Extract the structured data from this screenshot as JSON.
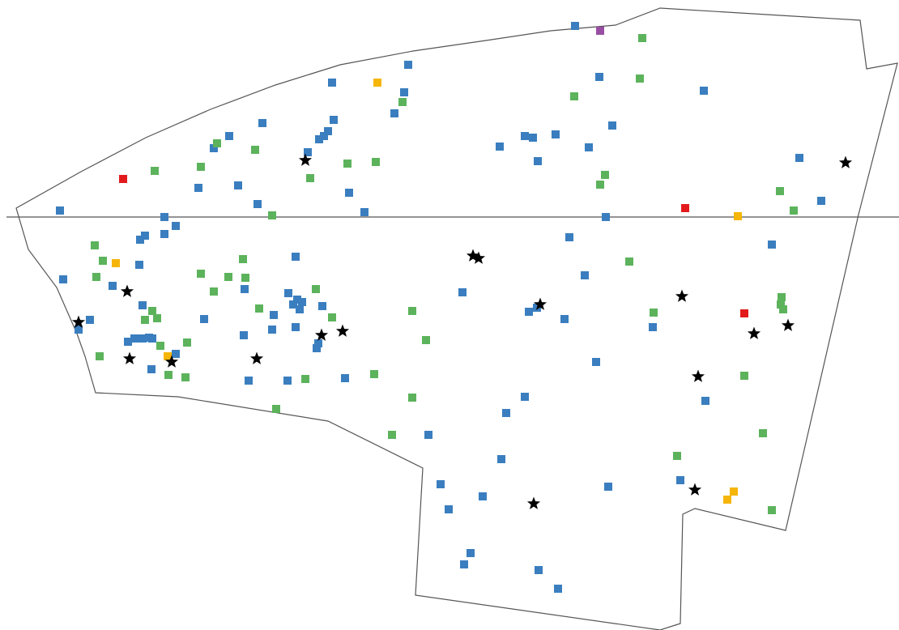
{
  "colors": {
    "background": "#ffffff",
    "outline": "#555555",
    "divider": "#555555",
    "blue": "#3a7ebf",
    "green": "#5cb35c",
    "red": "#e31a1c",
    "orange": "#f5b50a",
    "purple": "#984ea3",
    "star": "#000000"
  },
  "icons": {
    "square": "square-marker",
    "star": "star-marker"
  }
}
